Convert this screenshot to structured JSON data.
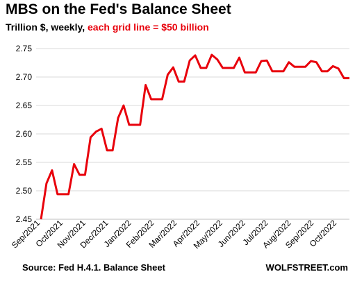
{
  "header": {
    "title": "MBS on the Fed's Balance Sheet",
    "subtitle_black": "Trillion $, weekly, ",
    "subtitle_red": "each grid line = $50 billion"
  },
  "footer": {
    "source": "Source: Fed H.4.1. Balance Sheet",
    "brand": "WOLFSTREET.com"
  },
  "colors": {
    "line": "#e8000b",
    "grid": "#d9d9d9",
    "accent_text": "#e8000b"
  },
  "chart_data": {
    "type": "line",
    "title": "MBS on the Fed's Balance Sheet",
    "subtitle": "Trillion $, weekly, each grid line = $50 billion",
    "xlabel": "",
    "ylabel": "",
    "ylim": [
      2.45,
      2.75
    ],
    "yticks": [
      "2.45",
      "2.50",
      "2.55",
      "2.60",
      "2.65",
      "2.70",
      "2.75"
    ],
    "grid": true,
    "month_labels": [
      "Sep/2021",
      "Oct/2021",
      "Nov/2021",
      "Dec/2021",
      "Jan/2022",
      "Feb/2022",
      "Mar/2022",
      "Apr/2022",
      "May/2022",
      "Jun/2022",
      "Jul/2022",
      "Aug/2022",
      "Sep/2022",
      "Oct/2022"
    ],
    "series": [
      {
        "values": [
          2.45,
          2.513,
          2.536,
          2.494,
          2.494,
          2.494,
          2.547,
          2.528,
          2.528,
          2.594,
          2.604,
          2.609,
          2.571,
          2.571,
          2.628,
          2.65,
          2.616,
          2.616,
          2.616,
          2.686,
          2.661,
          2.661,
          2.661,
          2.704,
          2.717,
          2.692,
          2.692,
          2.729,
          2.738,
          2.716,
          2.716,
          2.739,
          2.731,
          2.716,
          2.716,
          2.716,
          2.734,
          2.708,
          2.708,
          2.708,
          2.728,
          2.729,
          2.71,
          2.71,
          2.71,
          2.726,
          2.718,
          2.718,
          2.718,
          2.728,
          2.726,
          2.71,
          2.71,
          2.719,
          2.715,
          2.698,
          2.698
        ]
      }
    ]
  }
}
